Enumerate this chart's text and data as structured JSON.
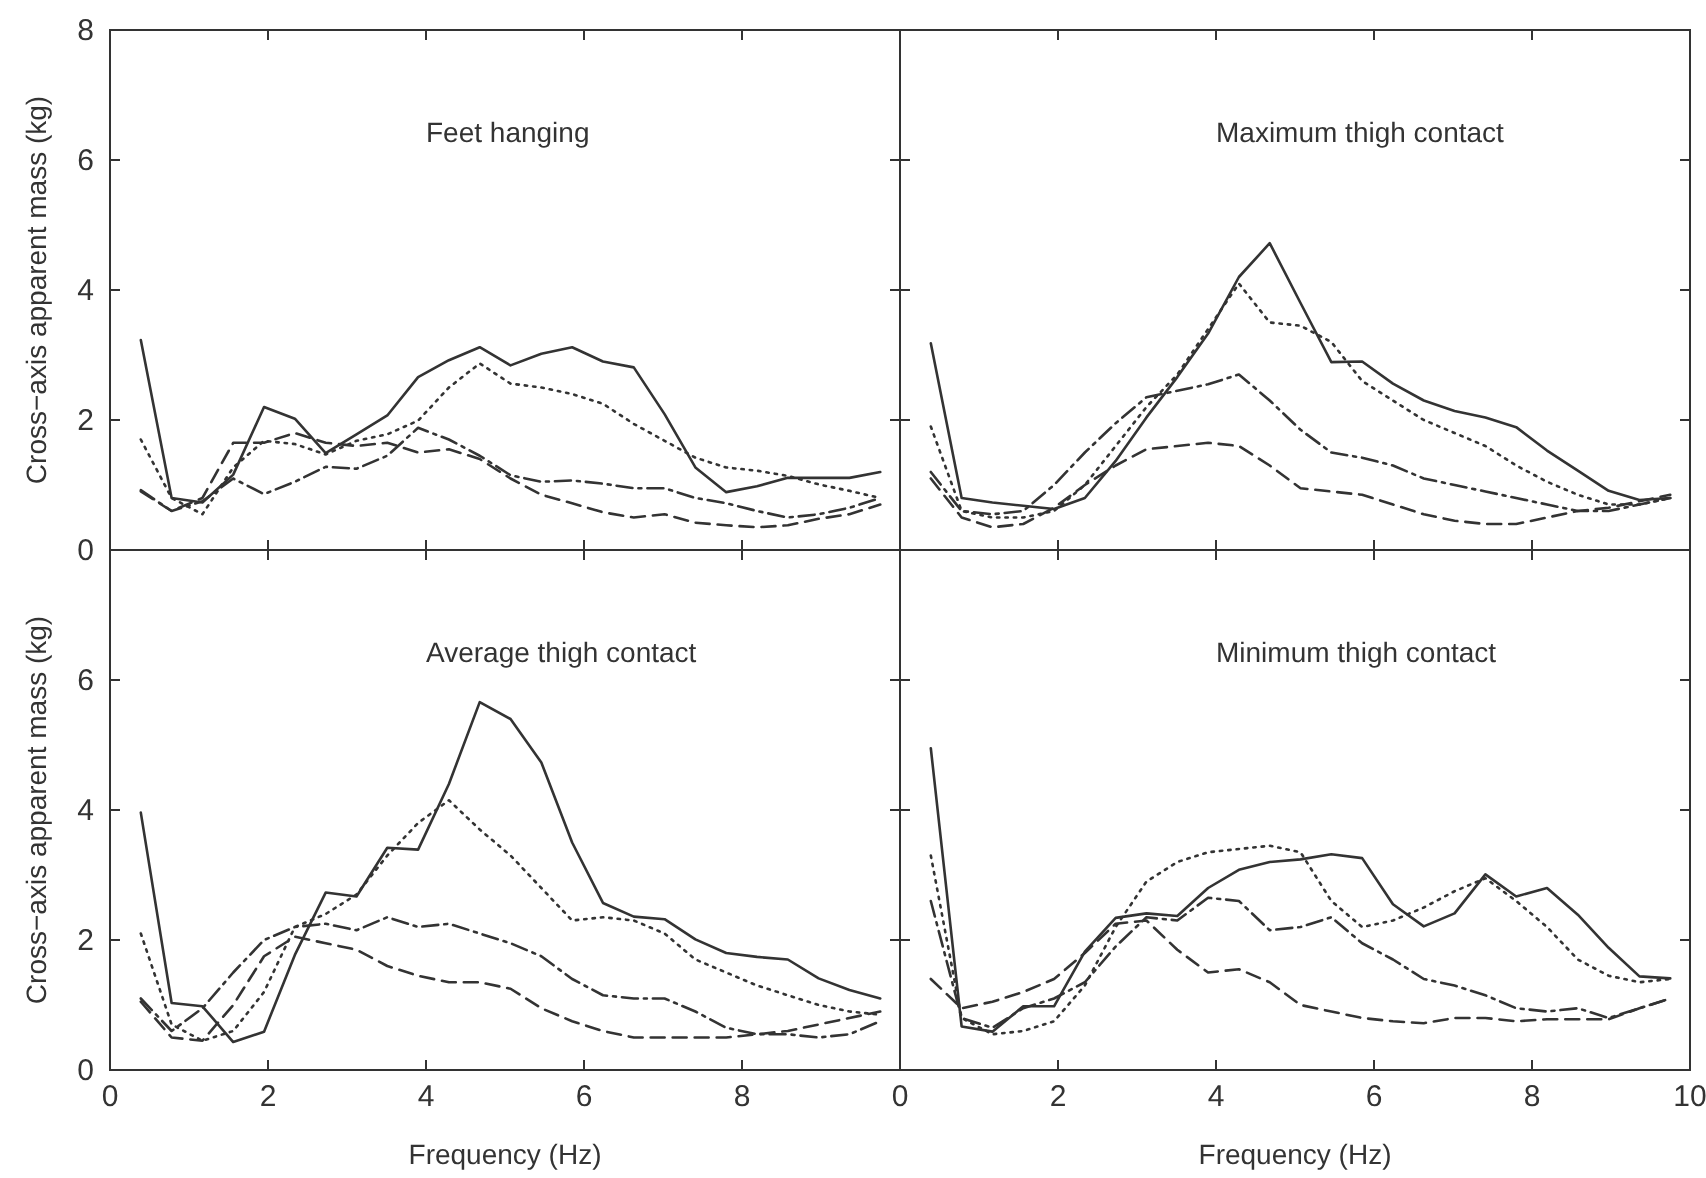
{
  "chart_data": [
    {
      "type": "line",
      "title": "Feet hanging",
      "ylabel": "Cross−axis apparent mass (kg)",
      "x": [
        0.39,
        0.78,
        1.17,
        1.56,
        1.95,
        2.34,
        2.73,
        3.12,
        3.51,
        3.9,
        4.29,
        4.68,
        5.07,
        5.46,
        5.85,
        6.24,
        6.63,
        7.02,
        7.41,
        7.8,
        8.19,
        8.58,
        8.97,
        9.36,
        9.75
      ],
      "xlim": [
        0,
        10
      ],
      "xticks": [
        0,
        2,
        4,
        6,
        8,
        10
      ],
      "ylim": [
        0,
        8
      ],
      "yticks": [
        0,
        2,
        4,
        6,
        8
      ],
      "tick_labels": "y",
      "grid": false,
      "series": [
        {
          "color": "#333333",
          "line_style": "solid",
          "values": [
            3.23,
            0.8,
            0.73,
            1.16,
            2.2,
            2.02,
            1.49,
            1.78,
            2.07,
            2.66,
            2.92,
            3.12,
            2.84,
            3.02,
            3.12,
            2.9,
            2.81,
            2.09,
            1.27,
            0.89,
            0.98,
            1.11,
            1.11,
            1.11,
            1.2
          ]
        },
        {
          "color": "#333333",
          "line_style": "dotted",
          "values": [
            1.7,
            0.8,
            0.55,
            1.27,
            1.68,
            1.63,
            1.47,
            1.68,
            1.78,
            1.99,
            2.5,
            2.87,
            2.56,
            2.5,
            2.4,
            2.25,
            1.94,
            1.68,
            1.42,
            1.27,
            1.22,
            1.14,
            1.01,
            0.91,
            0.8
          ]
        },
        {
          "color": "#333333",
          "line_style": "dashdot",
          "values": [
            0.92,
            0.6,
            0.75,
            1.1,
            0.86,
            1.05,
            1.28,
            1.25,
            1.45,
            1.88,
            1.7,
            1.45,
            1.15,
            1.05,
            1.07,
            1.02,
            0.95,
            0.95,
            0.8,
            0.72,
            0.6,
            0.5,
            0.55,
            0.65,
            0.8
          ]
        },
        {
          "color": "#333333",
          "line_style": "dashed",
          "values": [
            0.9,
            0.6,
            0.8,
            1.65,
            1.65,
            1.8,
            1.65,
            1.6,
            1.65,
            1.5,
            1.55,
            1.4,
            1.1,
            0.85,
            0.72,
            0.58,
            0.5,
            0.55,
            0.42,
            0.38,
            0.35,
            0.38,
            0.48,
            0.55,
            0.7
          ]
        }
      ]
    },
    {
      "type": "line",
      "title": "Maximum thigh contact",
      "x": [
        0.39,
        0.78,
        1.17,
        1.56,
        1.95,
        2.34,
        2.73,
        3.12,
        3.51,
        3.9,
        4.29,
        4.68,
        5.07,
        5.46,
        5.85,
        6.24,
        6.63,
        7.02,
        7.41,
        7.8,
        8.19,
        8.58,
        8.97,
        9.36,
        9.75
      ],
      "xlim": [
        0,
        10
      ],
      "xticks": [
        0,
        2,
        4,
        6,
        8,
        10
      ],
      "ylim": [
        0,
        8
      ],
      "yticks": [
        0,
        2,
        4,
        6,
        8
      ],
      "tick_labels": false,
      "grid": false,
      "series": [
        {
          "color": "#333333",
          "line_style": "solid",
          "values": [
            3.18,
            0.8,
            0.73,
            0.68,
            0.63,
            0.8,
            1.37,
            2.04,
            2.66,
            3.33,
            4.2,
            4.72,
            3.8,
            2.89,
            2.9,
            2.56,
            2.3,
            2.14,
            2.04,
            1.89,
            1.53,
            1.22,
            0.91,
            0.77,
            0.8
          ]
        },
        {
          "color": "#333333",
          "line_style": "dotted",
          "values": [
            1.9,
            0.6,
            0.5,
            0.5,
            0.6,
            1.0,
            1.6,
            2.2,
            2.7,
            3.4,
            4.1,
            3.5,
            3.45,
            3.2,
            2.6,
            2.3,
            2.0,
            1.8,
            1.6,
            1.3,
            1.05,
            0.85,
            0.7,
            0.7,
            0.8
          ]
        },
        {
          "color": "#333333",
          "line_style": "dashdot",
          "values": [
            1.2,
            0.6,
            0.55,
            0.6,
            1.0,
            1.5,
            1.95,
            2.35,
            2.45,
            2.55,
            2.7,
            2.3,
            1.85,
            1.5,
            1.42,
            1.3,
            1.1,
            1.0,
            0.9,
            0.8,
            0.7,
            0.6,
            0.6,
            0.7,
            0.8
          ]
        },
        {
          "color": "#333333",
          "line_style": "dashed",
          "values": [
            1.1,
            0.5,
            0.35,
            0.4,
            0.65,
            1.0,
            1.3,
            1.55,
            1.6,
            1.65,
            1.6,
            1.3,
            0.95,
            0.9,
            0.85,
            0.7,
            0.55,
            0.45,
            0.4,
            0.4,
            0.5,
            0.6,
            0.65,
            0.75,
            0.85
          ]
        }
      ]
    },
    {
      "type": "line",
      "title": "Average thigh contact",
      "xlabel": "Frequency (Hz)",
      "ylabel": "Cross−axis apparent mass (kg)",
      "x": [
        0.39,
        0.78,
        1.17,
        1.56,
        1.95,
        2.34,
        2.73,
        3.12,
        3.51,
        3.9,
        4.29,
        4.68,
        5.07,
        5.46,
        5.85,
        6.24,
        6.63,
        7.02,
        7.41,
        7.8,
        8.19,
        8.58,
        8.97,
        9.36,
        9.75
      ],
      "xlim": [
        0,
        10
      ],
      "xticks": [
        0,
        2,
        4,
        6,
        8
      ],
      "ylim": [
        0,
        8
      ],
      "yticks": [
        0,
        2,
        4,
        6
      ],
      "grid": false,
      "series": [
        {
          "color": "#333333",
          "line_style": "solid",
          "values": [
            3.96,
            1.03,
            0.98,
            0.43,
            0.59,
            1.77,
            2.73,
            2.67,
            3.42,
            3.39,
            4.4,
            5.66,
            5.4,
            4.73,
            3.5,
            2.57,
            2.36,
            2.32,
            2.01,
            1.8,
            1.74,
            1.7,
            1.41,
            1.23,
            1.1
          ]
        },
        {
          "color": "#333333",
          "line_style": "dotted",
          "values": [
            2.1,
            0.7,
            0.45,
            0.6,
            1.2,
            2.2,
            2.4,
            2.7,
            3.3,
            3.8,
            4.15,
            3.7,
            3.3,
            2.8,
            2.3,
            2.35,
            2.3,
            2.1,
            1.7,
            1.5,
            1.3,
            1.15,
            1.0,
            0.9,
            0.85
          ]
        },
        {
          "color": "#333333",
          "line_style": "dashdot",
          "values": [
            1.1,
            0.6,
            0.95,
            1.5,
            2.0,
            2.2,
            2.25,
            2.15,
            2.35,
            2.2,
            2.25,
            2.1,
            1.95,
            1.75,
            1.4,
            1.15,
            1.1,
            1.1,
            0.9,
            0.65,
            0.55,
            0.55,
            0.5,
            0.55,
            0.75
          ]
        },
        {
          "color": "#333333",
          "line_style": "dashed",
          "values": [
            1.05,
            0.5,
            0.45,
            1.0,
            1.75,
            2.05,
            1.95,
            1.85,
            1.6,
            1.45,
            1.35,
            1.35,
            1.25,
            0.95,
            0.75,
            0.6,
            0.5,
            0.5,
            0.5,
            0.5,
            0.55,
            0.6,
            0.7,
            0.8,
            0.9
          ]
        }
      ]
    },
    {
      "type": "line",
      "title": "Minimum thigh contact",
      "xlabel": "Frequency (Hz)",
      "x": [
        0.39,
        0.78,
        1.17,
        1.56,
        1.95,
        2.34,
        2.73,
        3.12,
        3.51,
        3.9,
        4.29,
        4.68,
        5.07,
        5.46,
        5.85,
        6.24,
        6.63,
        7.02,
        7.41,
        7.8,
        8.19,
        8.58,
        8.97,
        9.36,
        9.75
      ],
      "xlim": [
        0,
        10
      ],
      "xticks": [
        0,
        2,
        4,
        6,
        8,
        10
      ],
      "ylim": [
        0,
        8
      ],
      "yticks": [
        0,
        2,
        4,
        6,
        8
      ],
      "tick_labels": "x",
      "grid": false,
      "series": [
        {
          "color": "#333333",
          "line_style": "solid",
          "values": [
            4.95,
            0.67,
            0.59,
            0.98,
            0.98,
            1.82,
            2.34,
            2.41,
            2.37,
            2.8,
            3.08,
            3.2,
            3.24,
            3.32,
            3.26,
            2.55,
            2.21,
            2.41,
            3.01,
            2.67,
            2.8,
            2.39,
            1.88,
            1.44,
            1.41
          ]
        },
        {
          "color": "#333333",
          "line_style": "dotted",
          "values": [
            3.3,
            0.8,
            0.55,
            0.6,
            0.75,
            1.3,
            2.2,
            2.9,
            3.2,
            3.35,
            3.4,
            3.45,
            3.35,
            2.6,
            2.2,
            2.3,
            2.5,
            2.75,
            2.95,
            2.6,
            2.2,
            1.7,
            1.45,
            1.35,
            1.4
          ]
        },
        {
          "color": "#333333",
          "line_style": "dashdot",
          "values": [
            2.6,
            0.8,
            0.65,
            0.95,
            1.1,
            1.35,
            1.9,
            2.35,
            2.3,
            2.65,
            2.6,
            2.15,
            2.2,
            2.35,
            1.95,
            1.7,
            1.4,
            1.3,
            1.15,
            0.95,
            0.9,
            0.95,
            0.8,
            0.95,
            1.1
          ]
        },
        {
          "color": "#333333",
          "line_style": "dashed",
          "values": [
            1.4,
            0.95,
            1.05,
            1.2,
            1.4,
            1.8,
            2.25,
            2.3,
            1.85,
            1.5,
            1.55,
            1.35,
            1.0,
            0.9,
            0.8,
            0.75,
            0.72,
            0.8,
            0.8,
            0.75,
            0.78,
            0.78,
            0.78,
            0.95,
            1.1
          ]
        }
      ]
    }
  ]
}
